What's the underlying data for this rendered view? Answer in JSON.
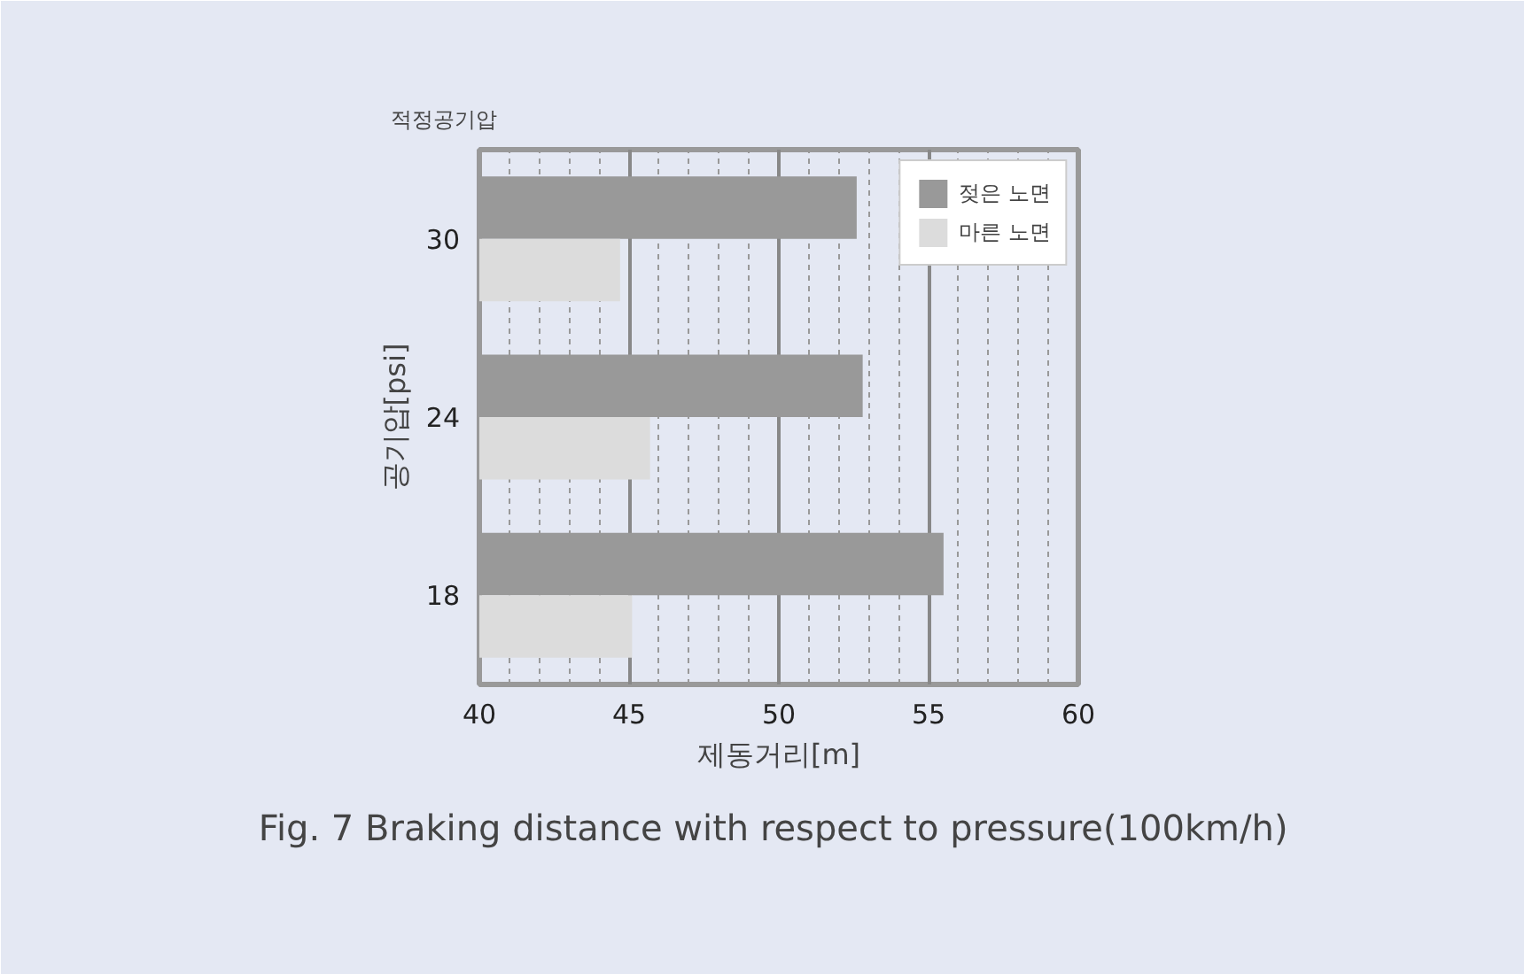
{
  "chart_data": {
    "type": "bar",
    "orientation": "horizontal",
    "xlabel": "제동거리[m]",
    "ylabel": "공기압[psi]",
    "categories": [
      "30",
      "24",
      "18"
    ],
    "series": [
      {
        "name": "젖은 노면",
        "color": "#999999",
        "values": [
          52.6,
          52.8,
          55.5
        ]
      },
      {
        "name": "마른 노면",
        "color": "#dcdcdc",
        "values": [
          44.7,
          45.7,
          45.1
        ]
      }
    ],
    "xlim": [
      40,
      60
    ],
    "xticks": [
      40,
      45,
      50,
      55,
      60
    ],
    "grid": "x",
    "legend": "top right",
    "annotations": [
      "적정공기압",
      "Fig.  7 Braking distance with respect to pressure(100km/h)"
    ]
  }
}
